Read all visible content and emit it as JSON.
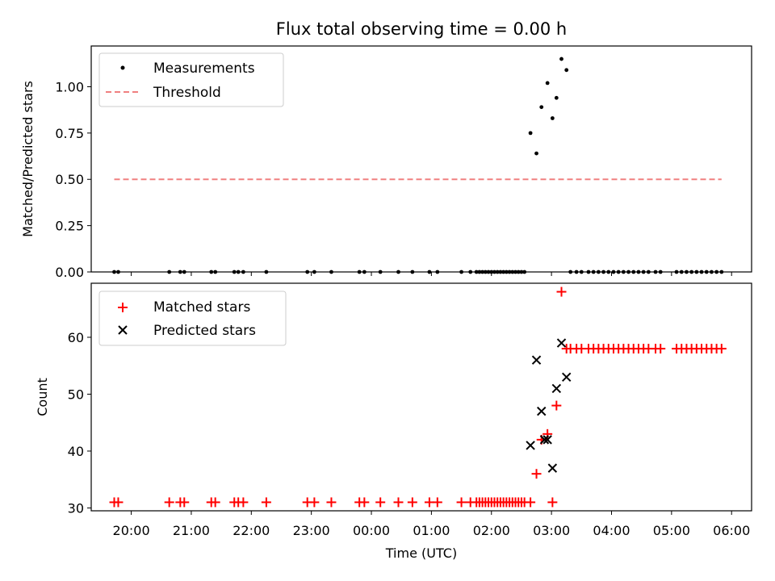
{
  "chart_data": [
    {
      "type": "scatter",
      "title": "Flux total observing time = 0.00 h",
      "xlabel": "",
      "ylabel": "Matched/Predicted stars",
      "xlim": [
        "19:20",
        "06:20"
      ],
      "ylim": [
        0,
        1.22
      ],
      "yticks": [
        0,
        0.25,
        0.5,
        0.75,
        1.0
      ],
      "ytick_labels": [
        "0.00",
        "0.25",
        "0.50",
        "0.75",
        "1.00"
      ],
      "grid": false,
      "legend": "top-left",
      "series": [
        {
          "name": "Measurements",
          "marker": "dot",
          "color": "#000000",
          "points": [
            [
              "19:43",
              0
            ],
            [
              "19:47",
              0
            ],
            [
              "20:38",
              0
            ],
            [
              "20:49",
              0
            ],
            [
              "20:53",
              0
            ],
            [
              "21:20",
              0
            ],
            [
              "21:24",
              0
            ],
            [
              "21:43",
              0
            ],
            [
              "21:47",
              0
            ],
            [
              "21:52",
              0
            ],
            [
              "22:15",
              0
            ],
            [
              "22:56",
              0
            ],
            [
              "23:03",
              0
            ],
            [
              "23:20",
              0
            ],
            [
              "23:48",
              0
            ],
            [
              "23:53",
              0
            ],
            [
              "00:09",
              0
            ],
            [
              "00:27",
              0
            ],
            [
              "00:41",
              0
            ],
            [
              "00:58",
              0
            ],
            [
              "01:06",
              0
            ],
            [
              "01:30",
              0
            ],
            [
              "01:39",
              0
            ],
            [
              "01:45",
              0
            ],
            [
              "01:48",
              0
            ],
            [
              "01:51",
              0
            ],
            [
              "01:54",
              0
            ],
            [
              "01:57",
              0
            ],
            [
              "02:00",
              0
            ],
            [
              "02:03",
              0
            ],
            [
              "02:06",
              0
            ],
            [
              "02:09",
              0
            ],
            [
              "02:12",
              0
            ],
            [
              "02:15",
              0
            ],
            [
              "02:18",
              0
            ],
            [
              "02:21",
              0
            ],
            [
              "02:24",
              0
            ],
            [
              "02:27",
              0
            ],
            [
              "02:30",
              0
            ],
            [
              "02:33",
              0
            ],
            [
              "02:39",
              0.75
            ],
            [
              "02:45",
              0.64
            ],
            [
              "02:50",
              0.89
            ],
            [
              "02:56",
              1.02
            ],
            [
              "03:01",
              0.83
            ],
            [
              "03:05",
              0.94
            ],
            [
              "03:10",
              1.15
            ],
            [
              "03:15",
              1.09
            ],
            [
              "03:19",
              0
            ],
            [
              "03:25",
              0
            ],
            [
              "03:30",
              0
            ],
            [
              "03:37",
              0
            ],
            [
              "03:42",
              0
            ],
            [
              "03:47",
              0
            ],
            [
              "03:52",
              0
            ],
            [
              "03:57",
              0
            ],
            [
              "04:02",
              0
            ],
            [
              "04:07",
              0
            ],
            [
              "04:12",
              0
            ],
            [
              "04:17",
              0
            ],
            [
              "04:22",
              0
            ],
            [
              "04:27",
              0
            ],
            [
              "04:32",
              0
            ],
            [
              "04:37",
              0
            ],
            [
              "04:44",
              0
            ],
            [
              "04:49",
              0
            ],
            [
              "05:05",
              0
            ],
            [
              "05:10",
              0
            ],
            [
              "05:15",
              0
            ],
            [
              "05:20",
              0
            ],
            [
              "05:25",
              0
            ],
            [
              "05:30",
              0
            ],
            [
              "05:35",
              0
            ],
            [
              "05:40",
              0
            ],
            [
              "05:45",
              0
            ],
            [
              "05:50",
              0
            ]
          ]
        },
        {
          "name": "Threshold",
          "marker": "dashed-line",
          "color": "#f08080",
          "points": [
            [
              "19:43",
              0.5
            ],
            [
              "05:50",
              0.5
            ]
          ]
        }
      ]
    },
    {
      "type": "scatter",
      "title": "",
      "xlabel": "Time (UTC)",
      "ylabel": "Count",
      "xlim": [
        "19:20",
        "06:20"
      ],
      "ylim": [
        29.5,
        69.5
      ],
      "yticks": [
        30,
        40,
        50,
        60
      ],
      "ytick_labels": [
        "30",
        "40",
        "50",
        "60"
      ],
      "xticks": [
        "20:00",
        "21:00",
        "22:00",
        "23:00",
        "00:00",
        "01:00",
        "02:00",
        "03:00",
        "04:00",
        "05:00",
        "06:00"
      ],
      "grid": false,
      "legend": "top-left",
      "series": [
        {
          "name": "Matched stars",
          "marker": "plus",
          "color": "#ff0000",
          "points": [
            [
              "19:43",
              31
            ],
            [
              "19:47",
              31
            ],
            [
              "20:38",
              31
            ],
            [
              "20:49",
              31
            ],
            [
              "20:53",
              31
            ],
            [
              "21:20",
              31
            ],
            [
              "21:24",
              31
            ],
            [
              "21:43",
              31
            ],
            [
              "21:47",
              31
            ],
            [
              "21:52",
              31
            ],
            [
              "22:15",
              31
            ],
            [
              "22:56",
              31
            ],
            [
              "23:03",
              31
            ],
            [
              "23:20",
              31
            ],
            [
              "23:48",
              31
            ],
            [
              "23:53",
              31
            ],
            [
              "00:09",
              31
            ],
            [
              "00:27",
              31
            ],
            [
              "00:41",
              31
            ],
            [
              "00:58",
              31
            ],
            [
              "01:06",
              31
            ],
            [
              "01:30",
              31
            ],
            [
              "01:39",
              31
            ],
            [
              "01:45",
              31
            ],
            [
              "01:48",
              31
            ],
            [
              "01:51",
              31
            ],
            [
              "01:54",
              31
            ],
            [
              "01:57",
              31
            ],
            [
              "02:00",
              31
            ],
            [
              "02:03",
              31
            ],
            [
              "02:06",
              31
            ],
            [
              "02:09",
              31
            ],
            [
              "02:12",
              31
            ],
            [
              "02:15",
              31
            ],
            [
              "02:18",
              31
            ],
            [
              "02:21",
              31
            ],
            [
              "02:24",
              31
            ],
            [
              "02:27",
              31
            ],
            [
              "02:30",
              31
            ],
            [
              "02:33",
              31
            ],
            [
              "02:39",
              31
            ],
            [
              "02:45",
              36
            ],
            [
              "02:50",
              42
            ],
            [
              "02:56",
              43
            ],
            [
              "03:01",
              31
            ],
            [
              "03:05",
              48
            ],
            [
              "03:10",
              68
            ],
            [
              "03:15",
              58
            ],
            [
              "03:19",
              58
            ],
            [
              "03:25",
              58
            ],
            [
              "03:30",
              58
            ],
            [
              "03:37",
              58
            ],
            [
              "03:42",
              58
            ],
            [
              "03:47",
              58
            ],
            [
              "03:52",
              58
            ],
            [
              "03:57",
              58
            ],
            [
              "04:02",
              58
            ],
            [
              "04:07",
              58
            ],
            [
              "04:12",
              58
            ],
            [
              "04:17",
              58
            ],
            [
              "04:22",
              58
            ],
            [
              "04:27",
              58
            ],
            [
              "04:32",
              58
            ],
            [
              "04:37",
              58
            ],
            [
              "04:44",
              58
            ],
            [
              "04:49",
              58
            ],
            [
              "05:05",
              58
            ],
            [
              "05:10",
              58
            ],
            [
              "05:15",
              58
            ],
            [
              "05:20",
              58
            ],
            [
              "05:25",
              58
            ],
            [
              "05:30",
              58
            ],
            [
              "05:35",
              58
            ],
            [
              "05:40",
              58
            ],
            [
              "05:45",
              58
            ],
            [
              "05:50",
              58
            ]
          ]
        },
        {
          "name": "Predicted stars",
          "marker": "x",
          "color": "#000000",
          "points": [
            [
              "02:39",
              41
            ],
            [
              "02:45",
              56
            ],
            [
              "02:50",
              47
            ],
            [
              "02:53",
              42
            ],
            [
              "02:56",
              42
            ],
            [
              "03:01",
              37
            ],
            [
              "03:05",
              51
            ],
            [
              "03:10",
              59
            ],
            [
              "03:15",
              53
            ]
          ]
        }
      ]
    }
  ]
}
